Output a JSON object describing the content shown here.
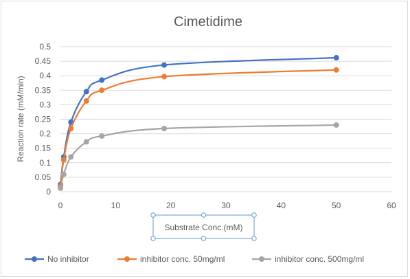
{
  "chart_data": {
    "type": "scatter",
    "title": "Cimetidime",
    "xlabel": "Substrate Conc.(mM)",
    "ylabel": "Reaction rate (mM/min)",
    "xlim": [
      0,
      60
    ],
    "ylim": [
      0,
      0.5
    ],
    "xticks": [
      "0",
      "10",
      "20",
      "30",
      "40",
      "50",
      "60"
    ],
    "yticks": [
      "0",
      "0.05",
      "0.1",
      "0.15",
      "0.2",
      "0.25",
      "0.3",
      "0.35",
      "0.4",
      "0.45",
      "0.5"
    ],
    "grid": "horizontal",
    "legend_position": "bottom",
    "smoothed": true,
    "series": [
      {
        "name": "No inhibitor",
        "color": "#4472c4",
        "x": [
          0,
          0.6,
          1.9,
          4.7,
          7.5,
          18.8,
          50
        ],
        "y": [
          0.025,
          0.12,
          0.24,
          0.345,
          0.385,
          0.437,
          0.462
        ]
      },
      {
        "name": "inhibitor conc. 50mg/ml",
        "color": "#ed7d31",
        "x": [
          0,
          0.6,
          1.9,
          4.7,
          7.5,
          18.8,
          50
        ],
        "y": [
          0.02,
          0.11,
          0.218,
          0.313,
          0.35,
          0.397,
          0.42
        ]
      },
      {
        "name": "inhibitor conc. 500mg/ml",
        "color": "#a5a5a5",
        "x": [
          0,
          0.6,
          1.9,
          4.7,
          7.5,
          18.8,
          50
        ],
        "y": [
          0.012,
          0.06,
          0.12,
          0.172,
          0.192,
          0.218,
          0.23
        ]
      }
    ]
  }
}
